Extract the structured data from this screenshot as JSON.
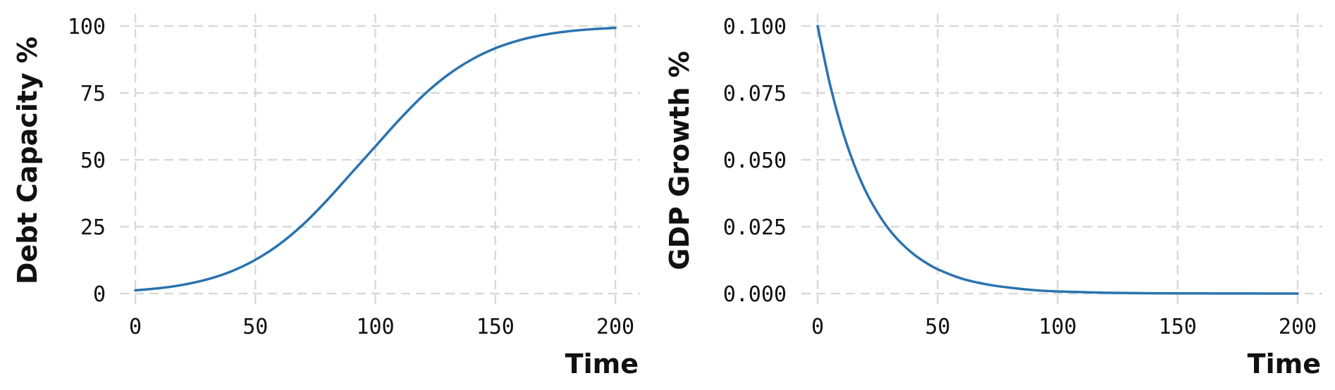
{
  "chart_data": [
    {
      "type": "line",
      "xlabel": "Time",
      "ylabel": "Debt Capacity %",
      "xlim": [
        0,
        200
      ],
      "ylim": [
        0,
        100
      ],
      "x_ticks": [
        "0",
        "50",
        "100",
        "150",
        "200"
      ],
      "y_ticks": [
        "0",
        "25",
        "50",
        "75",
        "100"
      ],
      "grid": true,
      "legend": "none",
      "series": [
        {
          "color": "#2a73b0",
          "x": [
            0,
            10,
            20,
            30,
            40,
            50,
            60,
            70,
            80,
            90,
            100,
            110,
            120,
            130,
            140,
            150,
            160,
            170,
            180,
            190,
            200
          ],
          "y": [
            1.2,
            2.0,
            3.3,
            5.3,
            8.3,
            12.6,
            18.4,
            25.9,
            35.0,
            45.0,
            55.0,
            65.0,
            74.1,
            81.6,
            87.4,
            91.7,
            94.7,
            96.7,
            98.0,
            98.8,
            99.3
          ]
        }
      ]
    },
    {
      "type": "line",
      "xlabel": "Time",
      "ylabel": "GDP Growth %",
      "xlim": [
        0,
        200
      ],
      "ylim": [
        0,
        0.1
      ],
      "x_ticks": [
        "0",
        "50",
        "100",
        "150",
        "200"
      ],
      "y_ticks": [
        "0.000",
        "0.025",
        "0.050",
        "0.075",
        "0.100"
      ],
      "grid": true,
      "legend": "none",
      "series": [
        {
          "color": "#2a73b0",
          "x": [
            0,
            5,
            10,
            15,
            20,
            25,
            30,
            35,
            40,
            45,
            50,
            60,
            70,
            80,
            90,
            100,
            120,
            140,
            160,
            180,
            200
          ],
          "y": [
            0.1,
            0.0787,
            0.0619,
            0.0487,
            0.0383,
            0.0302,
            0.0237,
            0.0187,
            0.0147,
            0.0116,
            0.0091,
            0.0056,
            0.0035,
            0.0022,
            0.0013,
            0.0008,
            0.0003,
            0.0001,
            5e-05,
            2e-05,
            1e-05
          ]
        }
      ]
    }
  ]
}
